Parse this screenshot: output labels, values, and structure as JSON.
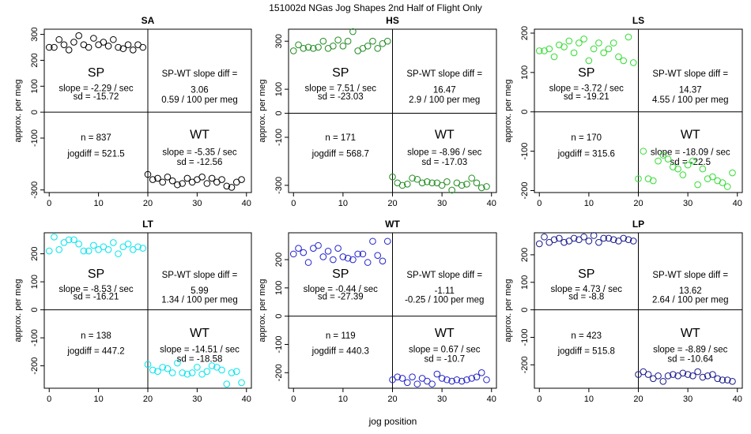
{
  "title": "151002d    NGas Jog Shapes 2nd Half of Flight Only",
  "xlabel": "jog position",
  "chart_data": [
    {
      "type": "scatter",
      "panel": "SA",
      "color": "#000000",
      "ylabel": "approx. per meg",
      "xlim": [
        -1,
        41
      ],
      "ylim": [
        -310,
        320
      ],
      "yticks": [
        -300,
        -100,
        0,
        100,
        200,
        300
      ],
      "ytick_labels": [
        "-300",
        "-100",
        "0",
        "100",
        "200",
        "300"
      ],
      "xticks": [
        0,
        10,
        20,
        30,
        40
      ],
      "xtick_labels": [
        "0",
        "10",
        "20",
        "30",
        "40"
      ],
      "sp_label": "SP",
      "wt_label": "WT",
      "sp_slope": "slope = -2.29 / sec",
      "sp_sd": "sd = -15.72",
      "diff_title": "SP-WT slope diff =",
      "diff_value": "3.06",
      "diff_per_meg": "0.59 / 100 per meg",
      "n_text": "n = 837",
      "jogdiff_text": "jogdiff = 521.5",
      "wt_slope": "slope = -5.35 / sec",
      "wt_sd": "sd = -12.56",
      "sp_points": {
        "x": [
          0,
          1,
          2,
          3,
          4,
          5,
          6,
          7,
          8,
          9,
          10,
          11,
          12,
          13,
          14,
          15,
          16,
          17,
          18,
          19
        ],
        "y": [
          250,
          250,
          280,
          260,
          240,
          270,
          295,
          260,
          250,
          285,
          260,
          270,
          255,
          280,
          250,
          245,
          260,
          240,
          260,
          250
        ]
      },
      "wt_points": {
        "x": [
          20,
          21,
          22,
          23,
          24,
          25,
          26,
          27,
          28,
          29,
          30,
          31,
          32,
          33,
          34,
          35,
          36,
          37,
          38,
          39
        ],
        "y": [
          -240,
          -260,
          -255,
          -270,
          -250,
          -265,
          -280,
          -275,
          -255,
          -270,
          -260,
          -250,
          -275,
          -255,
          -270,
          -260,
          -285,
          -290,
          -270,
          -260
        ]
      }
    },
    {
      "type": "scatter",
      "panel": "HS",
      "color": "#228b22",
      "ylabel": "approx. per meg",
      "xlim": [
        -1,
        41
      ],
      "ylim": [
        -330,
        350
      ],
      "yticks": [
        -300,
        -100,
        0,
        100,
        300
      ],
      "ytick_labels": [
        "-300",
        "-100",
        "0",
        "100",
        "300"
      ],
      "xticks": [
        0,
        10,
        20,
        30,
        40
      ],
      "xtick_labels": [
        "0",
        "10",
        "20",
        "30",
        "40"
      ],
      "sp_label": "SP",
      "wt_label": "WT",
      "sp_slope": "slope = 7.51 / sec",
      "sp_sd": "sd = -23.03",
      "diff_title": "SP-WT slope diff =",
      "diff_value": "16.47",
      "diff_per_meg": "2.9 / 100 per meg",
      "n_text": "n = 171",
      "jogdiff_text": "jogdiff = 568.7",
      "wt_slope": "slope = -8.96 / sec",
      "wt_sd": "sd = -17.03",
      "sp_points": {
        "x": [
          0,
          1,
          2,
          3,
          4,
          5,
          6,
          7,
          8,
          9,
          10,
          11,
          12,
          13,
          14,
          15,
          16,
          17,
          18,
          19
        ],
        "y": [
          260,
          285,
          270,
          275,
          270,
          275,
          300,
          270,
          280,
          305,
          280,
          300,
          340,
          260,
          270,
          280,
          300,
          270,
          290,
          300
        ]
      },
      "wt_points": {
        "x": [
          20,
          21,
          22,
          23,
          24,
          25,
          26,
          27,
          28,
          29,
          30,
          31,
          32,
          33,
          34,
          35,
          36,
          37,
          38,
          39
        ],
        "y": [
          -265,
          -290,
          -300,
          -295,
          -270,
          -275,
          -290,
          -285,
          -290,
          -290,
          -300,
          -285,
          -320,
          -290,
          -300,
          -295,
          -270,
          -290,
          -310,
          -305
        ]
      }
    },
    {
      "type": "scatter",
      "panel": "LS",
      "color": "#33dd33",
      "ylabel": "approx. per meg",
      "xlim": [
        -1,
        41
      ],
      "ylim": [
        -205,
        210
      ],
      "yticks": [
        -200,
        -100,
        0,
        100,
        200
      ],
      "ytick_labels": [
        "-200",
        "-100",
        "0",
        "100",
        "200"
      ],
      "xticks": [
        0,
        10,
        20,
        30,
        40
      ],
      "xtick_labels": [
        "0",
        "10",
        "20",
        "30",
        "40"
      ],
      "sp_label": "SP",
      "wt_label": "WT",
      "sp_slope": "slope = -3.72 / sec",
      "sp_sd": "sd = -19.21",
      "diff_title": "SP-WT slope diff =",
      "diff_value": "14.37",
      "diff_per_meg": "4.55 / 100 per meg",
      "n_text": "n = 170",
      "jogdiff_text": "jogdiff = 315.6",
      "wt_slope": "slope = -18.09 / sec",
      "wt_sd": "sd = -22.5",
      "sp_points": {
        "x": [
          0,
          1,
          2,
          3,
          4,
          5,
          6,
          7,
          8,
          9,
          10,
          11,
          12,
          13,
          14,
          15,
          16,
          17,
          18,
          19
        ],
        "y": [
          155,
          155,
          160,
          140,
          170,
          165,
          180,
          150,
          175,
          185,
          130,
          160,
          175,
          150,
          160,
          175,
          140,
          130,
          190,
          125
        ]
      },
      "wt_points": {
        "x": [
          20,
          21,
          22,
          23,
          24,
          25,
          26,
          27,
          28,
          29,
          30,
          31,
          32,
          33,
          34,
          35,
          36,
          37,
          38,
          39
        ],
        "y": [
          -170,
          -100,
          -170,
          -175,
          -125,
          -110,
          -120,
          -140,
          -145,
          -160,
          -135,
          -125,
          -185,
          -145,
          -170,
          -165,
          -175,
          -180,
          -190,
          -155
        ]
      }
    },
    {
      "type": "scatter",
      "panel": "LT",
      "color": "#00e5ee",
      "ylabel": "approx. per meg",
      "xlim": [
        -1,
        41
      ],
      "ylim": [
        -280,
        275
      ],
      "yticks": [
        -200,
        -100,
        0,
        100,
        200
      ],
      "ytick_labels": [
        "-200",
        "-100",
        "0",
        "100",
        "200"
      ],
      "xticks": [
        0,
        10,
        20,
        30,
        40
      ],
      "xtick_labels": [
        "0",
        "10",
        "20",
        "30",
        "40"
      ],
      "sp_label": "SP",
      "wt_label": "WT",
      "sp_slope": "slope = -8.53 / sec",
      "sp_sd": "sd = -16.21",
      "diff_title": "SP-WT slope diff =",
      "diff_value": "5.99",
      "diff_per_meg": "1.34 / 100 per meg",
      "n_text": "n = 138",
      "jogdiff_text": "jogdiff = 447.2",
      "wt_slope": "slope = -14.51 / sec",
      "wt_sd": "sd = -18.58",
      "sp_points": {
        "x": [
          0,
          1,
          2,
          3,
          4,
          5,
          6,
          7,
          8,
          9,
          10,
          11,
          12,
          13,
          14,
          15,
          16,
          17,
          18,
          19
        ],
        "y": [
          210,
          260,
          215,
          240,
          250,
          250,
          235,
          210,
          210,
          230,
          215,
          225,
          215,
          240,
          200,
          225,
          235,
          215,
          225,
          220
        ]
      },
      "wt_points": {
        "x": [
          20,
          21,
          22,
          23,
          24,
          25,
          26,
          27,
          28,
          29,
          30,
          31,
          32,
          33,
          34,
          35,
          36,
          37,
          38,
          39
        ],
        "y": [
          -195,
          -215,
          -220,
          -205,
          -210,
          -225,
          -190,
          -225,
          -230,
          -225,
          -205,
          -230,
          -220,
          -200,
          -205,
          -215,
          -265,
          -225,
          -220,
          -260
        ]
      }
    },
    {
      "type": "scatter",
      "panel": "WT",
      "color": "#2222cc",
      "ylabel": "approx. per meg",
      "xlim": [
        -1,
        41
      ],
      "ylim": [
        -255,
        295
      ],
      "yticks": [
        -200,
        -100,
        0,
        100,
        200
      ],
      "ytick_labels": [
        "-200",
        "-100",
        "0",
        "100",
        "200"
      ],
      "xticks": [
        0,
        10,
        20,
        30,
        40
      ],
      "xtick_labels": [
        "0",
        "10",
        "20",
        "30",
        "40"
      ],
      "sp_label": "SP",
      "wt_label": "WT",
      "sp_slope": "slope = -0.44 / sec",
      "sp_sd": "sd = -27.39",
      "diff_title": "SP-WT slope diff =",
      "diff_value": "-1.11",
      "diff_per_meg": "-0.25 / 100 per meg",
      "n_text": "n = 119",
      "jogdiff_text": "jogdiff = 440.3",
      "wt_slope": "slope = 0.67 / sec",
      "wt_sd": "sd = -10.7",
      "sp_points": {
        "x": [
          0,
          1,
          2,
          3,
          4,
          5,
          6,
          7,
          8,
          9,
          10,
          11,
          12,
          13,
          14,
          15,
          16,
          17,
          18,
          19
        ],
        "y": [
          220,
          240,
          225,
          190,
          240,
          250,
          210,
          230,
          200,
          240,
          210,
          205,
          200,
          220,
          220,
          190,
          265,
          215,
          195,
          265
        ]
      },
      "wt_points": {
        "x": [
          20,
          21,
          22,
          23,
          24,
          25,
          26,
          27,
          28,
          29,
          30,
          31,
          32,
          33,
          34,
          35,
          36,
          37,
          38,
          39
        ],
        "y": [
          -225,
          -215,
          -220,
          -235,
          -215,
          -240,
          -220,
          -230,
          -240,
          -205,
          -220,
          -225,
          -230,
          -225,
          -230,
          -225,
          -220,
          -215,
          -200,
          -225
        ]
      }
    },
    {
      "type": "scatter",
      "panel": "LP",
      "color": "#1a1a8c",
      "ylabel": "approx. per meg",
      "xlim": [
        -1,
        41
      ],
      "ylim": [
        -285,
        280
      ],
      "yticks": [
        -200,
        -100,
        0,
        100,
        200
      ],
      "ytick_labels": [
        "-200",
        "-100",
        "0",
        "100",
        "200"
      ],
      "xticks": [
        0,
        10,
        20,
        30,
        40
      ],
      "xtick_labels": [
        "0",
        "10",
        "20",
        "30",
        "40"
      ],
      "sp_label": "SP",
      "wt_label": "WT",
      "sp_slope": "slope = 4.73 / sec",
      "sp_sd": "sd = -8.8",
      "diff_title": "SP-WT slope diff =",
      "diff_value": "13.62",
      "diff_per_meg": "2.64 / 100 per meg",
      "n_text": "n = 423",
      "jogdiff_text": "jogdiff = 515.8",
      "wt_slope": "slope = -8.89 / sec",
      "wt_sd": "sd = -10.64",
      "sp_points": {
        "x": [
          0,
          1,
          2,
          3,
          4,
          5,
          6,
          7,
          8,
          9,
          10,
          11,
          12,
          13,
          14,
          15,
          16,
          17,
          18,
          19
        ],
        "y": [
          240,
          265,
          245,
          255,
          260,
          245,
          250,
          260,
          255,
          265,
          250,
          270,
          245,
          260,
          260,
          255,
          250,
          260,
          255,
          250
        ]
      },
      "wt_points": {
        "x": [
          20,
          21,
          22,
          23,
          24,
          25,
          26,
          27,
          28,
          29,
          30,
          31,
          32,
          33,
          34,
          35,
          36,
          37,
          38,
          39
        ],
        "y": [
          -235,
          -225,
          -235,
          -250,
          -240,
          -260,
          -240,
          -235,
          -240,
          -230,
          -235,
          -240,
          -225,
          -245,
          -240,
          -235,
          -250,
          -255,
          -255,
          -260
        ]
      }
    }
  ]
}
